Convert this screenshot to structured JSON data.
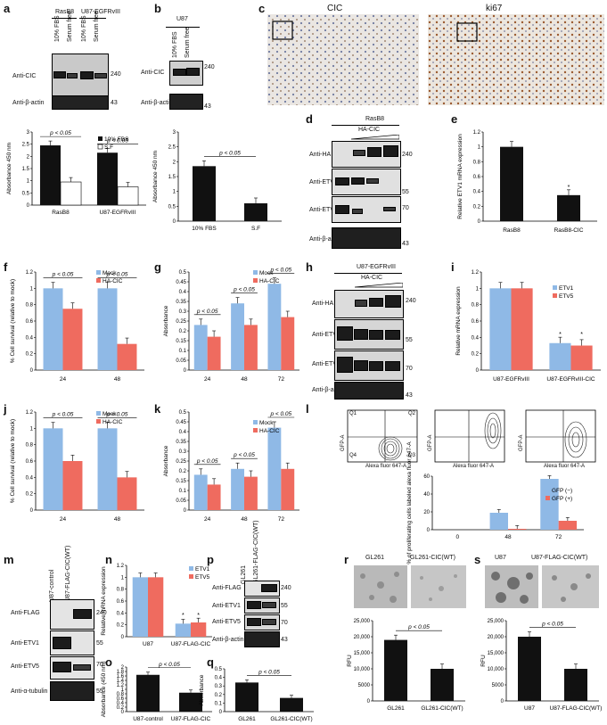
{
  "panels": {
    "a": "a",
    "b": "b",
    "c": "c",
    "d": "d",
    "e": "e",
    "f": "f",
    "g": "g",
    "h": "h",
    "i": "i",
    "j": "j",
    "k": "k",
    "l": "l",
    "m": "m",
    "n": "n",
    "o": "o",
    "p": "p",
    "q": "q",
    "r": "r",
    "s": "s"
  },
  "blot_a": {
    "groups": [
      "RasB8",
      "U87-EGFRvIII"
    ],
    "lanes": [
      "10% FBS",
      "Serum free",
      "10% FBS",
      "Serum free"
    ],
    "rows": [
      "Anti-CIC",
      "Anti-β-actin"
    ],
    "mw": [
      "240",
      "43"
    ]
  },
  "blot_b": {
    "group": "U87",
    "lanes": [
      "10% FBS",
      "Serum free"
    ],
    "rows": [
      "Anti-CIC",
      "Anti-β-actin"
    ],
    "mw": [
      "240",
      "43"
    ]
  },
  "micro_c": {
    "left": "CIC",
    "right": "ki67"
  },
  "blot_d": {
    "group": "RasB8",
    "sub": "HA-CIC",
    "rows": [
      "Anti-HA",
      "Anti-ETV1",
      "Anti-ETV5",
      "Anti-β-actin"
    ],
    "mw": [
      "240",
      "55",
      "70",
      "43"
    ]
  },
  "blot_h": {
    "group": "U87-EGFRvIII",
    "sub": "HA-CIC",
    "rows": [
      "Anti-HA",
      "Anti-ETV1",
      "Anti-ETV5",
      "Anti-β-actin"
    ],
    "mw": [
      "240",
      "55",
      "70",
      "43"
    ]
  },
  "blot_m": {
    "lanes": [
      "U87-control",
      "U87-FLAG-CIC(WT)"
    ],
    "rows": [
      "Anti-FLAG",
      "Anti-ETV1",
      "Anti-ETV5",
      "Anti-α-tubulin"
    ],
    "mw": [
      "240",
      "55",
      "70",
      "55"
    ]
  },
  "blot_p": {
    "lanes": [
      "GL261",
      "GL261-FLAG-CIC(WT)"
    ],
    "rows": [
      "Anti-FLAG",
      "Anti-ETV1",
      "Anti-ETV5",
      "Anti-β-actin"
    ],
    "mw": [
      "240",
      "55",
      "70",
      "43"
    ]
  },
  "micro_r": {
    "left": "GL261",
    "right": "GL261-CIC(WT)"
  },
  "micro_s": {
    "left": "U87",
    "right": "U87-FLAG-CIC(WT)"
  },
  "pval": "p < 0.05",
  "flow_l": {
    "quads": [
      "Q1",
      "Q2",
      "Q3",
      "Q4"
    ],
    "xlabel": "Alexa fluor 647-A",
    "ylabel": "GFP-A"
  },
  "colors": {
    "blue": "#8fb9e6",
    "red": "#ef6b5f",
    "black": "#111111",
    "white": "#ffffff"
  },
  "chart_data": [
    {
      "id": "a",
      "type": "bar",
      "categories": [
        "RasB8",
        "U87-EGFRvIII"
      ],
      "series": [
        {
          "name": "10% FBS",
          "values": [
            2.45,
            2.15
          ]
        },
        {
          "name": "S.F",
          "values": [
            0.95,
            0.75
          ]
        }
      ],
      "ylabel": "Absorbance 450 nm",
      "ylim": [
        0,
        3
      ],
      "yticks": [
        "0",
        "0.5",
        "1",
        "1.5",
        "2",
        "2.5",
        "3"
      ]
    },
    {
      "id": "b",
      "type": "bar",
      "categories": [
        "10% FBS",
        "S.F"
      ],
      "values": [
        1.85,
        0.6
      ],
      "ylabel": "Absorbance 450 nm",
      "ylim": [
        0,
        3
      ],
      "yticks": [
        "0",
        "0.5",
        "1",
        "1.5",
        "2",
        "2.5",
        "3"
      ]
    },
    {
      "id": "e",
      "type": "bar",
      "categories": [
        "RasB8",
        "RasB8-CIC"
      ],
      "values": [
        1.0,
        0.35
      ],
      "ylabel": "Relative ETV1 mRNA expression",
      "ylim": [
        0,
        1.2
      ],
      "yticks": [
        "0",
        "0.2",
        "0.4",
        "0.6",
        "0.8",
        "1",
        "1.2"
      ]
    },
    {
      "id": "f",
      "type": "bar",
      "categories": [
        "24",
        "48"
      ],
      "series": [
        {
          "name": "Mock",
          "values": [
            1.0,
            1.0
          ]
        },
        {
          "name": "HA-CIC",
          "values": [
            0.75,
            0.32
          ]
        }
      ],
      "ylabel": "% Cell survival (relative to mock)",
      "ylim": [
        0,
        1.2
      ],
      "yticks": [
        "0",
        "0.2",
        "0.4",
        "0.6",
        "0.8",
        "1",
        "1.2"
      ]
    },
    {
      "id": "g",
      "type": "bar",
      "categories": [
        "24",
        "48",
        "72"
      ],
      "series": [
        {
          "name": "Mock",
          "values": [
            0.23,
            0.34,
            0.44
          ]
        },
        {
          "name": "HA-CIC",
          "values": [
            0.17,
            0.23,
            0.27
          ]
        }
      ],
      "ylabel": "Absorbance",
      "ylim": [
        0,
        0.5
      ],
      "yticks": [
        "0",
        "0.05",
        "0.1",
        "0.15",
        "0.2",
        "0.25",
        "0.3",
        "0.35",
        "0.4",
        "0.45",
        "0.5"
      ]
    },
    {
      "id": "i",
      "type": "bar",
      "categories": [
        "U87-EGFRvIII",
        "U87-EGFRvIII-CIC"
      ],
      "series": [
        {
          "name": "ETV1",
          "values": [
            1.0,
            0.33
          ]
        },
        {
          "name": "ETV5",
          "values": [
            1.0,
            0.3
          ]
        }
      ],
      "ylabel": "Relative mRNA expression",
      "ylim": [
        0,
        1.2
      ],
      "yticks": [
        "0",
        "0.2",
        "0.4",
        "0.6",
        "0.8",
        "1",
        "1.2"
      ]
    },
    {
      "id": "j",
      "type": "bar",
      "categories": [
        "24",
        "48"
      ],
      "series": [
        {
          "name": "Mock",
          "values": [
            1.0,
            1.0
          ]
        },
        {
          "name": "HA-CIC",
          "values": [
            0.6,
            0.4
          ]
        }
      ],
      "ylabel": "% Cell survival (relative to mock)",
      "ylim": [
        0,
        1.2
      ],
      "yticks": [
        "0",
        "0.2",
        "0.4",
        "0.6",
        "0.8",
        "1",
        "1.2"
      ]
    },
    {
      "id": "k",
      "type": "bar",
      "categories": [
        "24",
        "48",
        "72"
      ],
      "series": [
        {
          "name": "Mock",
          "values": [
            0.18,
            0.21,
            0.42
          ]
        },
        {
          "name": "HA-CIC",
          "values": [
            0.13,
            0.17,
            0.21
          ]
        }
      ],
      "ylabel": "Absorbance",
      "ylim": [
        0,
        0.5
      ],
      "yticks": [
        "0",
        "0.05",
        "0.1",
        "0.15",
        "0.2",
        "0.25",
        "0.3",
        "0.35",
        "0.4",
        "0.45",
        "0.5"
      ]
    },
    {
      "id": "l",
      "type": "bar",
      "categories": [
        "0",
        "48",
        "72"
      ],
      "series": [
        {
          "name": "GFP (−)",
          "values": [
            0,
            19,
            57
          ]
        },
        {
          "name": "GFP (+)",
          "values": [
            0,
            1,
            10
          ]
        }
      ],
      "ylabel": "% of proliferating cells labeled alexa fluor 647-A",
      "ylim": [
        0,
        60
      ],
      "yticks": [
        "0",
        "20",
        "40",
        "60"
      ]
    },
    {
      "id": "n",
      "type": "bar",
      "categories": [
        "U87",
        "U87-FLAG-CIC"
      ],
      "series": [
        {
          "name": "ETV1",
          "values": [
            1.0,
            0.22
          ]
        },
        {
          "name": "ETV5",
          "values": [
            1.0,
            0.24
          ]
        }
      ],
      "ylabel": "Relative mRNA expression",
      "ylim": [
        0,
        1.2
      ],
      "yticks": [
        "0",
        "0.2",
        "0.4",
        "0.6",
        "0.8",
        "1",
        "1.2"
      ]
    },
    {
      "id": "o",
      "type": "bar",
      "categories": [
        "U87-control",
        "U87-FLAG-CIC"
      ],
      "values": [
        1.65,
        0.85
      ],
      "ylabel": "Absorbance (450 nm)",
      "ylim": [
        0,
        2
      ],
      "yticks": [
        "0",
        "0.2",
        "0.4",
        "0.6",
        "0.8",
        "1",
        "1.2",
        "1.4",
        "1.6",
        "1.8",
        "2"
      ]
    },
    {
      "id": "q",
      "type": "bar",
      "categories": [
        "GL261",
        "GL261-CIC(WT)"
      ],
      "values": [
        0.34,
        0.16
      ],
      "ylabel": "Absorbance",
      "ylim": [
        0,
        0.5
      ],
      "yticks": [
        "0",
        "0.1",
        "0.2",
        "0.3",
        "0.4",
        "0.5"
      ]
    },
    {
      "id": "r",
      "type": "bar",
      "categories": [
        "GL261",
        "GL261-CIC(WT)"
      ],
      "values": [
        19000,
        10000
      ],
      "ylabel": "RFU",
      "ylim": [
        0,
        25000
      ],
      "yticks": [
        "0",
        "5000",
        "10,000",
        "15,000",
        "20,000",
        "25,000"
      ]
    },
    {
      "id": "s",
      "type": "bar",
      "categories": [
        "U87",
        "U87-FLAG-CIC(WT)"
      ],
      "values": [
        20000,
        10000
      ],
      "ylabel": "RFU",
      "ylim": [
        0,
        25000
      ],
      "yticks": [
        "0",
        "5000",
        "10,000",
        "15,000",
        "20,000",
        "25,000"
      ]
    }
  ]
}
